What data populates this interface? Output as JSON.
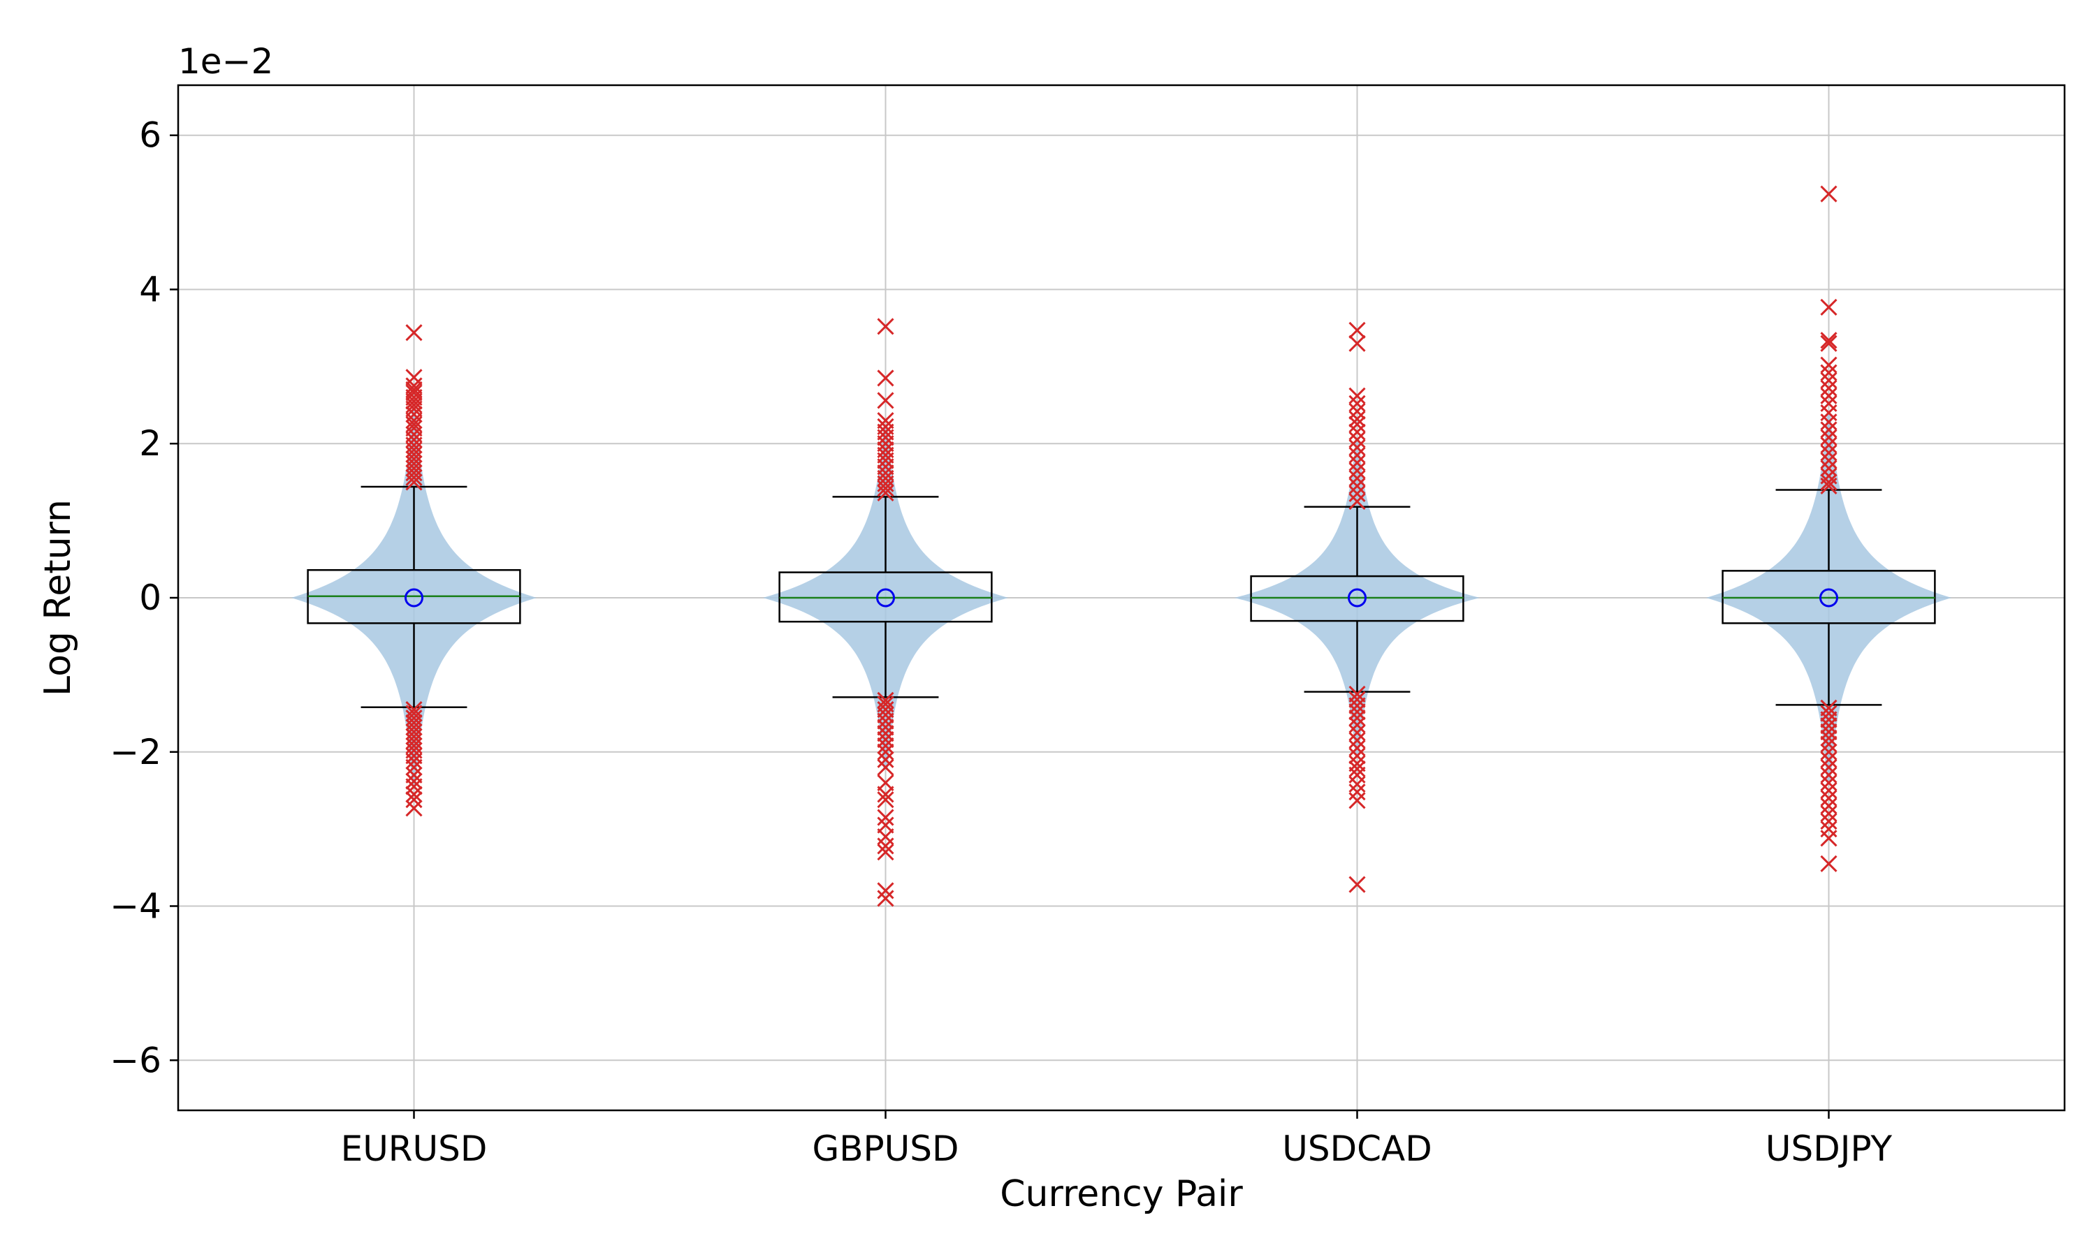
{
  "chart_data": {
    "type": "violin",
    "xlabel": "Currency Pair",
    "ylabel": "Log Return",
    "offset_text": "1e−2",
    "scale_exponent": -2,
    "ylim": [
      -6.65,
      6.65
    ],
    "yticks": [
      -6,
      -4,
      -2,
      0,
      2,
      4,
      6
    ],
    "ytick_labels": [
      "−6",
      "−4",
      "−2",
      "0",
      "2",
      "4",
      "6"
    ],
    "grid": true,
    "categories": [
      "EURUSD",
      "GBPUSD",
      "USDCAD",
      "USDJPY"
    ],
    "series": [
      {
        "category": "EURUSD",
        "median": 0.02,
        "mean": 0.0,
        "q1": -0.33,
        "q3": 0.36,
        "whisker_low": -1.42,
        "whisker_high": 1.44,
        "violin_halfwidth": 0.26,
        "outliers": [
          3.44,
          2.86,
          2.75,
          2.7,
          2.66,
          2.6,
          2.55,
          2.5,
          2.45,
          2.38,
          2.3,
          2.25,
          2.2,
          2.12,
          2.05,
          1.98,
          1.92,
          1.86,
          1.8,
          1.74,
          1.68,
          1.62,
          1.56,
          1.5,
          -1.45,
          -1.5,
          -1.56,
          -1.62,
          -1.68,
          -1.74,
          -1.8,
          -1.86,
          -1.92,
          -1.98,
          -2.05,
          -2.12,
          -2.2,
          -2.3,
          -2.38,
          -2.45,
          -2.55,
          -2.62,
          -2.73
        ]
      },
      {
        "category": "GBPUSD",
        "median": 0.0,
        "mean": 0.0,
        "q1": -0.31,
        "q3": 0.33,
        "whisker_low": -1.29,
        "whisker_high": 1.31,
        "violin_halfwidth": 0.26,
        "outliers": [
          3.52,
          2.85,
          2.56,
          2.3,
          2.22,
          2.15,
          2.08,
          2.0,
          1.92,
          1.85,
          1.78,
          1.7,
          1.62,
          1.55,
          1.48,
          1.42,
          1.36,
          -1.33,
          -1.38,
          -1.45,
          -1.52,
          -1.6,
          -1.68,
          -1.76,
          -1.84,
          -1.92,
          -2.0,
          -2.1,
          -2.2,
          -2.4,
          -2.55,
          -2.62,
          -2.85,
          -2.95,
          -3.1,
          -3.22,
          -3.3,
          -3.8,
          -3.9
        ]
      },
      {
        "category": "USDCAD",
        "median": 0.0,
        "mean": 0.0,
        "q1": -0.3,
        "q3": 0.28,
        "whisker_low": -1.22,
        "whisker_high": 1.18,
        "violin_halfwidth": 0.26,
        "outliers": [
          3.47,
          3.3,
          2.62,
          2.52,
          2.42,
          2.32,
          2.25,
          2.15,
          2.05,
          1.95,
          1.85,
          1.75,
          1.65,
          1.55,
          1.45,
          1.35,
          1.25,
          -1.25,
          -1.32,
          -1.4,
          -1.48,
          -1.56,
          -1.65,
          -1.75,
          -1.85,
          -1.95,
          -2.05,
          -2.15,
          -2.22,
          -2.3,
          -2.42,
          -2.52,
          -2.63,
          -3.72
        ]
      },
      {
        "category": "USDJPY",
        "median": 0.0,
        "mean": 0.0,
        "q1": -0.33,
        "q3": 0.35,
        "whisker_low": -1.39,
        "whisker_high": 1.4,
        "violin_halfwidth": 0.26,
        "outliers": [
          5.24,
          3.77,
          3.34,
          3.3,
          3.02,
          2.92,
          2.82,
          2.72,
          2.62,
          2.52,
          2.4,
          2.28,
          2.18,
          2.08,
          1.98,
          1.88,
          1.78,
          1.68,
          1.58,
          1.5,
          1.45,
          -1.43,
          -1.5,
          -1.58,
          -1.66,
          -1.74,
          -1.82,
          -1.9,
          -2.0,
          -2.1,
          -2.2,
          -2.3,
          -2.4,
          -2.5,
          -2.6,
          -2.7,
          -2.8,
          -2.9,
          -3.0,
          -3.12,
          -3.45
        ]
      }
    ],
    "colors": {
      "violin": "#a8c8e2",
      "box": "#000000",
      "median": "#1a7f1a",
      "mean": "#0000ee",
      "outlier": "#d62728",
      "grid": "#c8c8c8"
    }
  }
}
